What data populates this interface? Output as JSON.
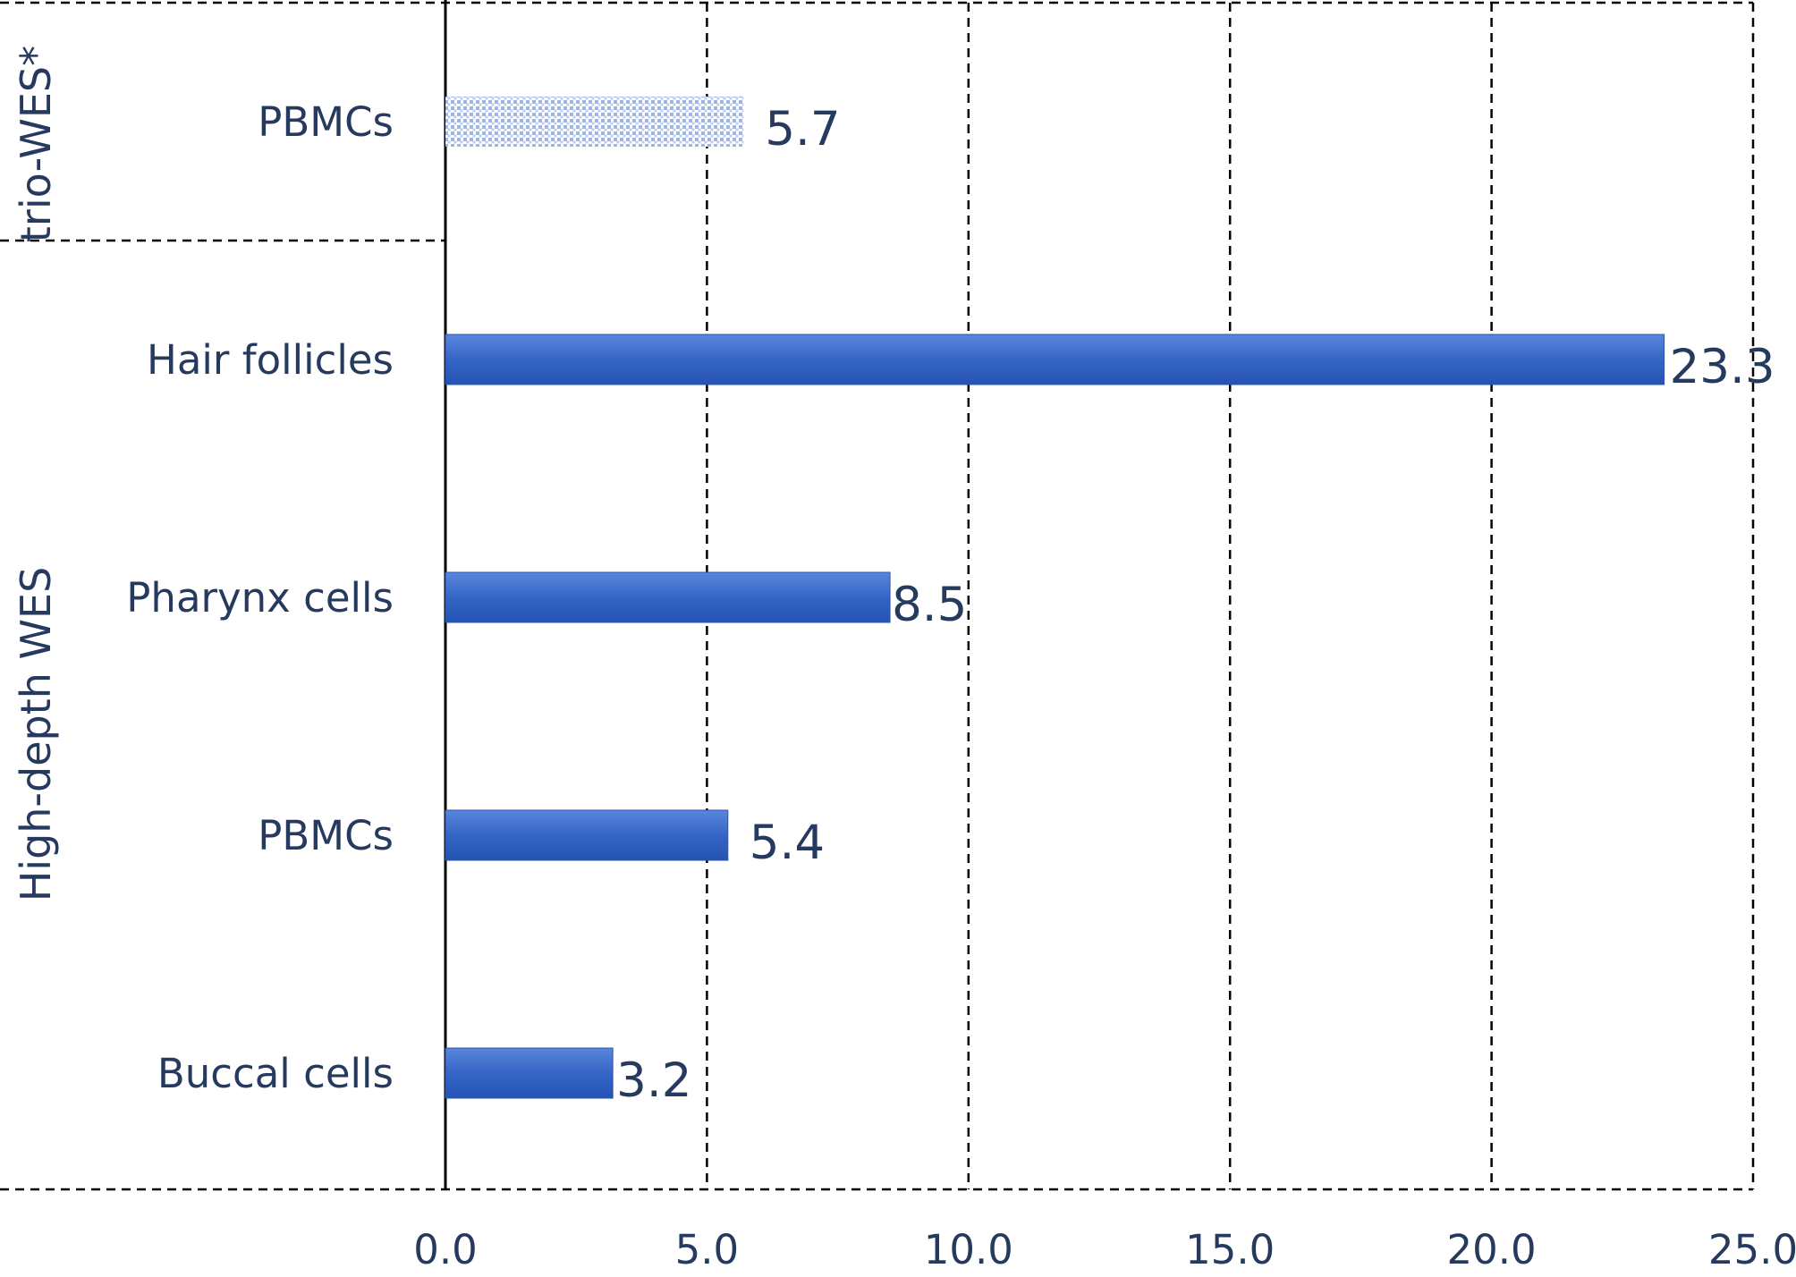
{
  "chart_data": {
    "type": "bar",
    "orientation": "horizontal",
    "groups": [
      {
        "label": "trio-WES*",
        "categories": [
          "PBMCs"
        ]
      },
      {
        "label": "High-depth WES",
        "categories": [
          "Hair follicles",
          "Pharynx cells",
          "PBMCs",
          "Buccal cells"
        ]
      }
    ],
    "bars": [
      {
        "group": "trio-WES*",
        "category": "PBMCs",
        "value": 5.7,
        "value_label": "5.7",
        "fill": "pattern"
      },
      {
        "group": "High-depth WES",
        "category": "Hair follicles",
        "value": 23.3,
        "value_label": "23.3",
        "fill": "solid"
      },
      {
        "group": "High-depth WES",
        "category": "Pharynx cells",
        "value": 8.5,
        "value_label": "8.5",
        "fill": "solid"
      },
      {
        "group": "High-depth WES",
        "category": "PBMCs",
        "value": 5.4,
        "value_label": "5.4",
        "fill": "solid"
      },
      {
        "group": "High-depth WES",
        "category": "Buccal cells",
        "value": 3.2,
        "value_label": "3.2",
        "fill": "solid"
      }
    ],
    "xlim": [
      0,
      25
    ],
    "x_ticks": [
      0,
      5,
      10,
      15,
      20,
      25
    ],
    "x_tick_labels": [
      "0.0",
      "5.0",
      "10.0",
      "15.0",
      "20.0",
      "25.0"
    ],
    "title": "",
    "xlabel": "",
    "ylabel": "",
    "grid": "vertical dashed",
    "legend": "none",
    "colors": {
      "bar": "#2f5dc0",
      "bar_light": "#4a7ad8",
      "pattern_bar": "#b9cdf0",
      "text": "#253a5e"
    }
  }
}
